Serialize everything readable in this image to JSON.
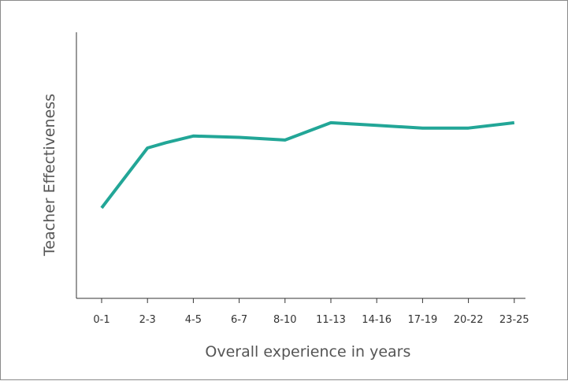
{
  "chart_data": {
    "type": "line",
    "title": "",
    "xlabel": "Overall experience in years",
    "ylabel": "Teacher Effectiveness",
    "x_categories": [
      "0-1",
      "2-3",
      "4-5",
      "6-7",
      "8-10",
      "11-13",
      "14-16",
      "17-19",
      "20-22",
      "23-25"
    ],
    "line_points": [
      {
        "x": 0.0,
        "y": 0.34
      },
      {
        "x": 1.0,
        "y": 0.565
      },
      {
        "x": 1.4,
        "y": 0.585
      },
      {
        "x": 2.0,
        "y": 0.61
      },
      {
        "x": 3.0,
        "y": 0.605
      },
      {
        "x": 4.0,
        "y": 0.595
      },
      {
        "x": 5.0,
        "y": 0.66
      },
      {
        "x": 6.0,
        "y": 0.65
      },
      {
        "x": 7.0,
        "y": 0.64
      },
      {
        "x": 8.0,
        "y": 0.64
      },
      {
        "x": 9.0,
        "y": 0.66
      }
    ],
    "ylim": [
      0,
      1
    ],
    "y_ticks_shown": false,
    "grid": false,
    "colors": {
      "line": "#22a697",
      "axis": "#333333"
    }
  }
}
